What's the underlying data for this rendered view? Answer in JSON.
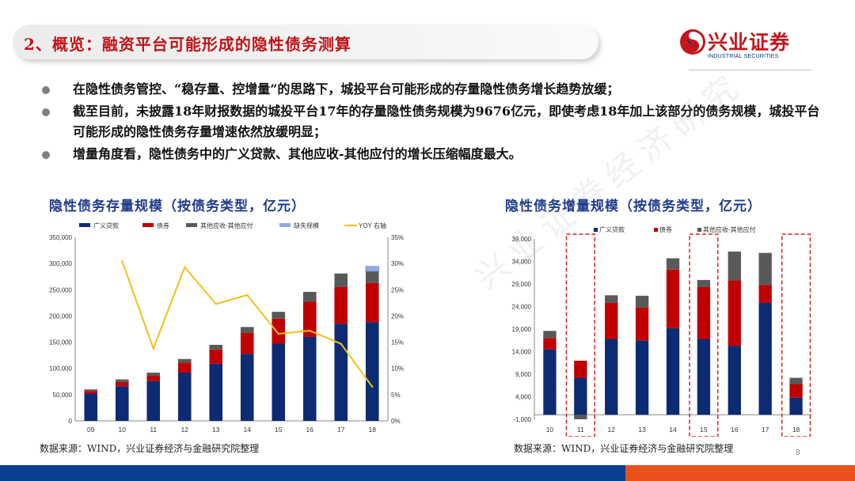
{
  "header": {
    "title": "2、概览：融资平台可能形成的隐性债务测算",
    "logo_cn": "兴业证券",
    "logo_en": "INDUSTRIAL SECURITIES"
  },
  "bullets": [
    "在隐性债务管控、“稳存量、控增量”的思路下，城投平台可能形成的存量隐性债务增长趋势放缓；",
    "截至目前，未披露18年财报数据的城投平台17年的存量隐性债务规模为9676亿元，即使考虑18年加上该部分的债务规模，城投平台可能形成的隐性债务存量增速依然放缓明显；",
    "增量角度看，隐性债务中的广义贷款、其他应收-其他应付的增长压缩幅度最大。"
  ],
  "watermark": "兴业证券经济研究",
  "page_number": "8",
  "colors": {
    "loan": "#0d2b73",
    "bond": "#c00000",
    "other": "#595959",
    "missing": "#8faadc",
    "yoy": "#f2c01c",
    "accent_red": "#c01418",
    "title_blue": "#1f3c88"
  },
  "chart_data": [
    {
      "type": "bar",
      "title": "隐性债务存量规模（按债务类型，亿元）",
      "stacked": true,
      "categories": [
        "09",
        "10",
        "11",
        "12",
        "13",
        "14",
        "15",
        "16",
        "17",
        "18"
      ],
      "series": [
        {
          "name": "广义贷款",
          "values": [
            52000,
            66000,
            76000,
            92000,
            109000,
            128000,
            147000,
            160000,
            185000,
            188000
          ]
        },
        {
          "name": "债券",
          "values": [
            5000,
            8000,
            10000,
            19000,
            27000,
            40000,
            48000,
            67000,
            70000,
            75000
          ]
        },
        {
          "name": "其他应收-其他应付",
          "values": [
            3000,
            5000,
            6000,
            7000,
            9000,
            11000,
            13000,
            19000,
            26000,
            22000
          ]
        },
        {
          "name": "缺失规模",
          "values": [
            0,
            0,
            0,
            0,
            0,
            0,
            0,
            0,
            0,
            9676
          ]
        }
      ],
      "line_series": {
        "name": "YOY 右轴",
        "values": [
          null,
          30.5,
          13.8,
          29.3,
          22.3,
          24.0,
          16.6,
          17.2,
          14.7,
          6.5
        ]
      },
      "ylim": [
        0,
        350000
      ],
      "yticks": [
        "350,000",
        "300,000",
        "250,000",
        "200,000",
        "150,000",
        "100,000",
        "50,000",
        "0"
      ],
      "y2lim": [
        0,
        35
      ],
      "y2ticks": [
        "35%",
        "30%",
        "25%",
        "20%",
        "15%",
        "10%",
        "5%",
        "0%"
      ],
      "legend": "top",
      "source": "数据来源：WIND，兴业证券经济与金融研究院整理"
    },
    {
      "type": "bar",
      "title": "隐性债务增量规模（按债务类型，亿元）",
      "stacked": true,
      "categories": [
        "10",
        "11",
        "12",
        "13",
        "14",
        "15",
        "16",
        "17",
        "18"
      ],
      "series": [
        {
          "name": "广义贷款",
          "values": [
            14500,
            8200,
            16800,
            16500,
            19200,
            16800,
            15300,
            24800,
            3800
          ]
        },
        {
          "name": "债券",
          "values": [
            2500,
            3800,
            8000,
            7300,
            13000,
            11500,
            14500,
            4000,
            3000
          ]
        },
        {
          "name": "其他应收-其他应付",
          "values": [
            1600,
            -1000,
            1700,
            2600,
            2500,
            1600,
            6400,
            7100,
            1400
          ]
        }
      ],
      "ylim": [
        -1000,
        39000
      ],
      "yticks": [
        "39,000",
        "34,000",
        "29,000",
        "24,000",
        "19,000",
        "14,000",
        "9,000",
        "4,000",
        "-1,000"
      ],
      "highlighted": [
        "11",
        "15",
        "18"
      ],
      "legend": "top",
      "source": "数据来源：WIND，兴业证券经济与金融研究院整理"
    }
  ]
}
